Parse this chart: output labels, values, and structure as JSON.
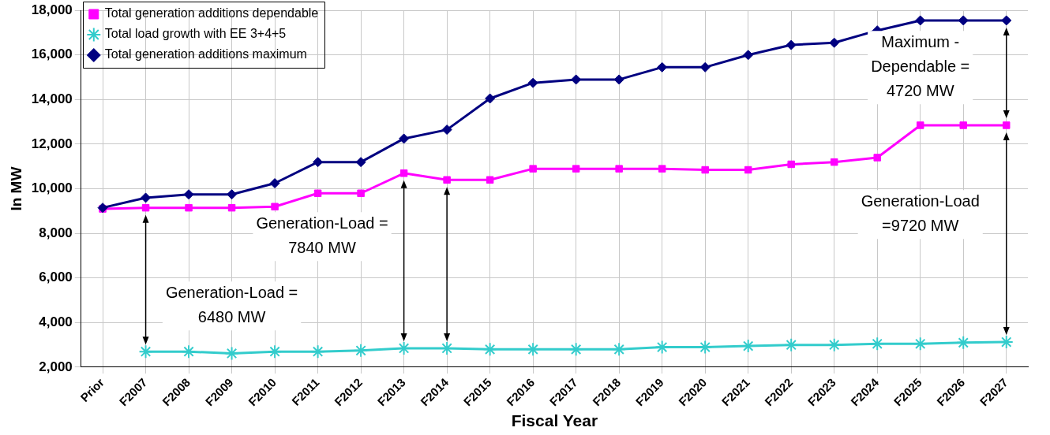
{
  "chart_data": {
    "type": "line",
    "xlabel": "Fiscal Year",
    "ylabel": "In MW",
    "categories": [
      "Prior",
      "F2007",
      "F2008",
      "F2009",
      "F2010",
      "F2011",
      "F2012",
      "F2013",
      "F2014",
      "F2015",
      "F2016",
      "F2017",
      "F2018",
      "F2019",
      "F2020",
      "F2021",
      "F2022",
      "F2023",
      "F2024",
      "F2025",
      "F2026",
      "F2027"
    ],
    "series": [
      {
        "name": "Total generation additions dependable",
        "color": "#ff00ff",
        "marker": "square",
        "values": [
          9100,
          9150,
          9150,
          9150,
          9200,
          9800,
          9800,
          10700,
          10400,
          10400,
          10900,
          10900,
          10900,
          10900,
          10850,
          10850,
          11100,
          11200,
          11400,
          12850,
          12850,
          12850
        ]
      },
      {
        "name": "Total load growth with EE 3+4+5",
        "color": "#33cccc",
        "marker": "cross",
        "values": [
          null,
          2700,
          2700,
          2620,
          2700,
          2700,
          2750,
          2850,
          2850,
          2800,
          2800,
          2800,
          2800,
          2900,
          2900,
          2950,
          3000,
          3000,
          3050,
          3050,
          3100,
          3130
        ]
      },
      {
        "name": "Total generation additions maximum",
        "color": "#000080",
        "marker": "diamond",
        "values": [
          9150,
          9600,
          9750,
          9750,
          10250,
          11200,
          11200,
          12250,
          12650,
          14050,
          14750,
          14900,
          14900,
          15450,
          15450,
          16000,
          16450,
          16550,
          17100,
          17550,
          17550,
          17550
        ]
      }
    ],
    "ylim": [
      2000,
      18000
    ],
    "yticks": [
      {
        "value": 2000,
        "label": "2,000"
      },
      {
        "value": 4000,
        "label": "4,000"
      },
      {
        "value": 6000,
        "label": "6,000"
      },
      {
        "value": 8000,
        "label": "8,000"
      },
      {
        "value": 10000,
        "label": "10,000"
      },
      {
        "value": 12000,
        "label": "12,000"
      },
      {
        "value": 14000,
        "label": "14,000"
      },
      {
        "value": 16000,
        "label": "16,000"
      },
      {
        "value": 18000,
        "label": "18,000"
      }
    ],
    "grid": true,
    "legend": "top left",
    "line_style": "solid",
    "annotations": [
      "Generation-Load =\n6480 MW",
      "Generation-Load =\n7840 MW",
      "Maximum -\nDependable =\n4720 MW",
      "Generation-Load\n=9720 MW"
    ]
  }
}
